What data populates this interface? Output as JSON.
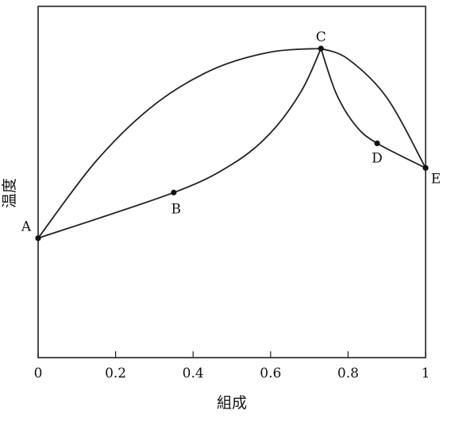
{
  "chart_data": {
    "type": "line",
    "xlabel": "組成",
    "ylabel": "温度",
    "xlim": [
      0,
      1
    ],
    "x_ticks": [
      {
        "value": 0,
        "label": "0"
      },
      {
        "value": 0.2,
        "label": "0.2"
      },
      {
        "value": 0.4,
        "label": "0.4"
      },
      {
        "value": 0.6,
        "label": "0.6"
      },
      {
        "value": 0.8,
        "label": "0.8"
      },
      {
        "value": 1,
        "label": "1"
      }
    ],
    "y_ticks": false,
    "grid": false,
    "points": [
      {
        "label": "A",
        "x": 0.0,
        "y": 0.34
      },
      {
        "label": "B",
        "x": 0.35,
        "y": 0.47
      },
      {
        "label": "C",
        "x": 0.73,
        "y": 0.88
      },
      {
        "label": "D",
        "x": 0.875,
        "y": 0.61
      },
      {
        "label": "E",
        "x": 1.0,
        "y": 0.54
      }
    ],
    "curves": [
      {
        "id": "upper-left",
        "points": [
          [
            0,
            0.34
          ],
          [
            0.15,
            0.56
          ],
          [
            0.3,
            0.72
          ],
          [
            0.45,
            0.82
          ],
          [
            0.6,
            0.87
          ],
          [
            0.73,
            0.88
          ]
        ]
      },
      {
        "id": "lower-left",
        "points": [
          [
            0,
            0.34
          ],
          [
            0.35,
            0.47
          ],
          [
            0.5,
            0.55
          ],
          [
            0.6,
            0.64
          ],
          [
            0.68,
            0.76
          ],
          [
            0.73,
            0.88
          ]
        ]
      },
      {
        "id": "upper-right",
        "points": [
          [
            0.73,
            0.88
          ],
          [
            0.8,
            0.85
          ],
          [
            0.9,
            0.74
          ],
          [
            1.0,
            0.54
          ]
        ]
      },
      {
        "id": "lower-right",
        "points": [
          [
            0.73,
            0.88
          ],
          [
            0.77,
            0.75
          ],
          [
            0.82,
            0.66
          ],
          [
            0.875,
            0.61
          ],
          [
            1.0,
            0.54
          ]
        ]
      }
    ]
  }
}
